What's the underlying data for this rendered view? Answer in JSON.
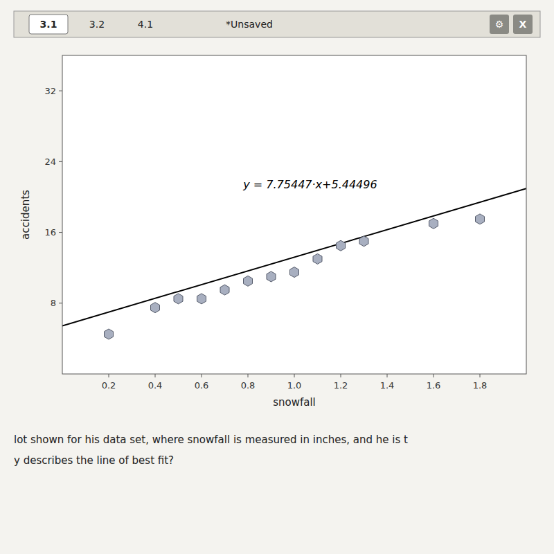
{
  "chart_data": {
    "type": "scatter",
    "xlabel": "snowfall",
    "ylabel": "accidents",
    "xlim": [
      0.0,
      2.0
    ],
    "ylim": [
      0,
      36
    ],
    "xticks": [
      0.2,
      0.4,
      0.6,
      0.8,
      {
        "value": 1.0,
        "label": "1.0"
      },
      1.2,
      1.4,
      1.6,
      1.8
    ],
    "yticks": [
      8,
      16,
      24,
      32
    ],
    "series": [
      {
        "type": "scatter",
        "color": "#a8afc0",
        "marker": "hexagon",
        "x": [
          0.2,
          0.4,
          0.5,
          0.6,
          0.7,
          0.8,
          0.9,
          1.0,
          1.1,
          1.2,
          1.3,
          1.6,
          1.8
        ],
        "values": [
          4.5,
          7.5,
          8.5,
          8.5,
          9.5,
          10.5,
          11.0,
          11.5,
          13.0,
          14.5,
          15.0,
          17.0,
          17.5
        ]
      },
      {
        "type": "line",
        "color": "#000000",
        "x": [
          0.0,
          2.0
        ],
        "values": [
          5.44496,
          20.9539
        ]
      }
    ],
    "annotations": [
      {
        "text": "y = 7.75447·x+5.44496",
        "x": 0.78,
        "y": 21.0
      }
    ],
    "header": [
      "3.1",
      "3.2",
      "4.1",
      "*Unsaved"
    ],
    "buttons": [
      "⚙",
      "X"
    ],
    "caption": [
      "lot shown for his data set, where snowfall is measured in inches, and he is t",
      "y describes the line of best fit?"
    ]
  }
}
